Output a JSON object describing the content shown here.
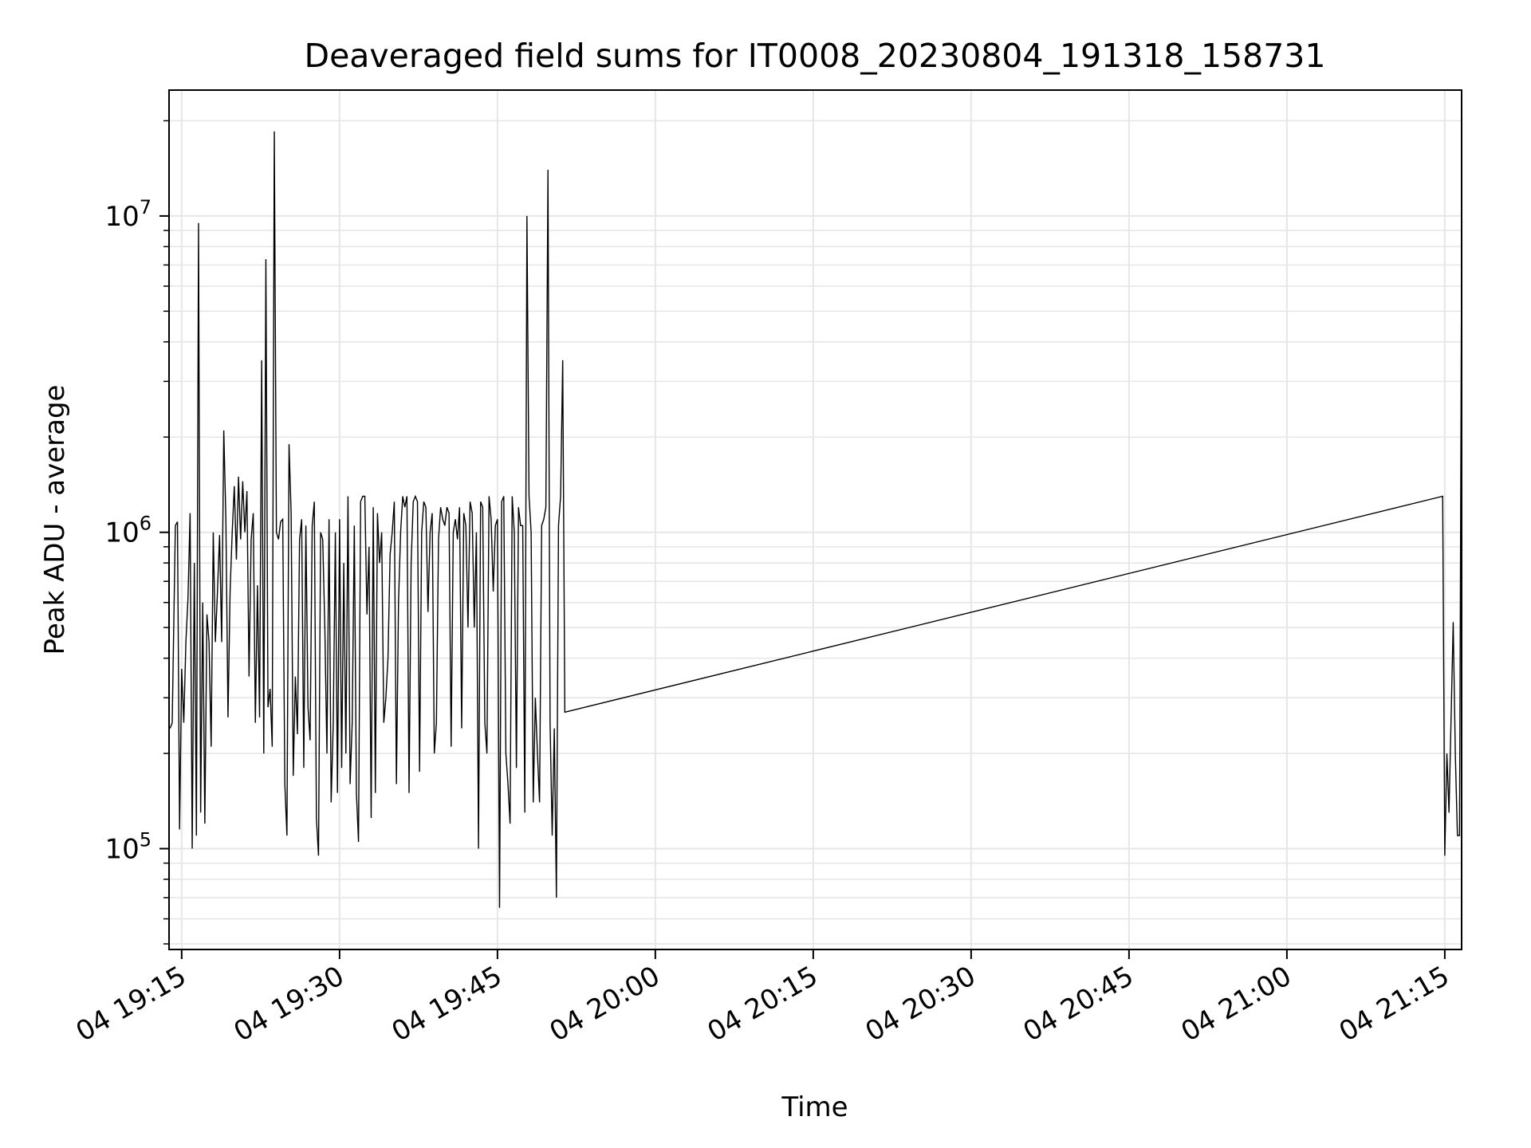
{
  "chart_data": {
    "type": "line",
    "title": "Deaveraged field sums for IT0008_20230804_191318_158731",
    "xlabel": "Time",
    "ylabel": "Peak ADU - average",
    "yscale": "log",
    "ylim": [
      48000,
      25000000
    ],
    "xlim": [
      "2023-08-04 19:13:48",
      "2023-08-04 21:16:36"
    ],
    "grid": true,
    "line_color": "#000000",
    "grid_color": "#e6e6e6",
    "x_ticks": [
      {
        "value": "2023-08-04 19:15:00",
        "label": "04 19:15"
      },
      {
        "value": "2023-08-04 19:30:00",
        "label": "04 19:30"
      },
      {
        "value": "2023-08-04 19:45:00",
        "label": "04 19:45"
      },
      {
        "value": "2023-08-04 20:00:00",
        "label": "04 20:00"
      },
      {
        "value": "2023-08-04 20:15:00",
        "label": "04 20:15"
      },
      {
        "value": "2023-08-04 20:30:00",
        "label": "04 20:30"
      },
      {
        "value": "2023-08-04 20:45:00",
        "label": "04 20:45"
      },
      {
        "value": "2023-08-04 21:00:00",
        "label": "04 21:00"
      },
      {
        "value": "2023-08-04 21:15:00",
        "label": "04 21:15"
      }
    ],
    "y_ticks": [
      {
        "value": 100000,
        "base": "10",
        "exp": "5"
      },
      {
        "value": 1000000,
        "base": "10",
        "exp": "6"
      },
      {
        "value": 10000000,
        "base": "10",
        "exp": "7"
      }
    ],
    "series": [
      {
        "x": [
          "2023-08-04 19:13:54",
          "2023-08-04 19:14:06",
          "2023-08-04 19:14:24",
          "2023-08-04 19:14:36",
          "2023-08-04 19:14:48",
          "2023-08-04 19:15:00",
          "2023-08-04 19:15:12",
          "2023-08-04 19:15:24",
          "2023-08-04 19:15:36",
          "2023-08-04 19:15:48",
          "2023-08-04 19:16:00",
          "2023-08-04 19:16:12",
          "2023-08-04 19:16:24",
          "2023-08-04 19:16:36",
          "2023-08-04 19:16:48",
          "2023-08-04 19:17:00",
          "2023-08-04 19:17:12",
          "2023-08-04 19:17:24",
          "2023-08-04 19:17:36",
          "2023-08-04 19:17:48",
          "2023-08-04 19:18:00",
          "2023-08-04 19:18:12",
          "2023-08-04 19:18:24",
          "2023-08-04 19:18:36",
          "2023-08-04 19:18:48",
          "2023-08-04 19:19:00",
          "2023-08-04 19:19:12",
          "2023-08-04 19:19:24",
          "2023-08-04 19:19:36",
          "2023-08-04 19:19:48",
          "2023-08-04 19:20:00",
          "2023-08-04 19:20:12",
          "2023-08-04 19:20:24",
          "2023-08-04 19:20:36",
          "2023-08-04 19:20:48",
          "2023-08-04 19:21:00",
          "2023-08-04 19:21:12",
          "2023-08-04 19:21:24",
          "2023-08-04 19:21:36",
          "2023-08-04 19:21:48",
          "2023-08-04 19:22:00",
          "2023-08-04 19:22:12",
          "2023-08-04 19:22:24",
          "2023-08-04 19:22:36",
          "2023-08-04 19:22:48",
          "2023-08-04 19:23:00",
          "2023-08-04 19:23:12",
          "2023-08-04 19:23:24",
          "2023-08-04 19:23:36",
          "2023-08-04 19:23:48",
          "2023-08-04 19:24:00",
          "2023-08-04 19:24:12",
          "2023-08-04 19:24:24",
          "2023-08-04 19:24:36",
          "2023-08-04 19:24:48",
          "2023-08-04 19:25:00",
          "2023-08-04 19:25:12",
          "2023-08-04 19:25:24",
          "2023-08-04 19:25:36",
          "2023-08-04 19:25:48",
          "2023-08-04 19:26:00",
          "2023-08-04 19:26:12",
          "2023-08-04 19:26:24",
          "2023-08-04 19:26:36",
          "2023-08-04 19:26:48",
          "2023-08-04 19:27:00",
          "2023-08-04 19:27:12",
          "2023-08-04 19:27:24",
          "2023-08-04 19:27:36",
          "2023-08-04 19:27:48",
          "2023-08-04 19:28:00",
          "2023-08-04 19:28:12",
          "2023-08-04 19:28:24",
          "2023-08-04 19:28:36",
          "2023-08-04 19:28:48",
          "2023-08-04 19:29:00",
          "2023-08-04 19:29:12",
          "2023-08-04 19:29:24",
          "2023-08-04 19:29:36",
          "2023-08-04 19:29:48",
          "2023-08-04 19:30:00",
          "2023-08-04 19:30:12",
          "2023-08-04 19:30:24",
          "2023-08-04 19:30:36",
          "2023-08-04 19:30:48",
          "2023-08-04 19:31:00",
          "2023-08-04 19:31:12",
          "2023-08-04 19:31:24",
          "2023-08-04 19:31:36",
          "2023-08-04 19:31:48",
          "2023-08-04 19:32:00",
          "2023-08-04 19:32:12",
          "2023-08-04 19:32:24",
          "2023-08-04 19:32:36",
          "2023-08-04 19:32:48",
          "2023-08-04 19:33:00",
          "2023-08-04 19:33:12",
          "2023-08-04 19:33:24",
          "2023-08-04 19:33:36",
          "2023-08-04 19:33:48",
          "2023-08-04 19:34:00",
          "2023-08-04 19:34:12",
          "2023-08-04 19:34:24",
          "2023-08-04 19:34:36",
          "2023-08-04 19:34:48",
          "2023-08-04 19:35:00",
          "2023-08-04 19:35:12",
          "2023-08-04 19:35:24",
          "2023-08-04 19:35:36",
          "2023-08-04 19:35:48",
          "2023-08-04 19:36:00",
          "2023-08-04 19:36:12",
          "2023-08-04 19:36:24",
          "2023-08-04 19:36:36",
          "2023-08-04 19:36:48",
          "2023-08-04 19:37:00",
          "2023-08-04 19:37:12",
          "2023-08-04 19:37:24",
          "2023-08-04 19:37:36",
          "2023-08-04 19:37:48",
          "2023-08-04 19:38:00",
          "2023-08-04 19:38:12",
          "2023-08-04 19:38:24",
          "2023-08-04 19:38:36",
          "2023-08-04 19:38:48",
          "2023-08-04 19:39:00",
          "2023-08-04 19:39:12",
          "2023-08-04 19:39:24",
          "2023-08-04 19:39:36",
          "2023-08-04 19:39:48",
          "2023-08-04 19:40:00",
          "2023-08-04 19:40:12",
          "2023-08-04 19:40:24",
          "2023-08-04 19:40:36",
          "2023-08-04 19:40:48",
          "2023-08-04 19:41:00",
          "2023-08-04 19:41:12",
          "2023-08-04 19:41:24",
          "2023-08-04 19:41:36",
          "2023-08-04 19:41:48",
          "2023-08-04 19:42:00",
          "2023-08-04 19:42:12",
          "2023-08-04 19:42:24",
          "2023-08-04 19:42:36",
          "2023-08-04 19:42:48",
          "2023-08-04 19:43:00",
          "2023-08-04 19:43:12",
          "2023-08-04 19:43:24",
          "2023-08-04 19:43:36",
          "2023-08-04 19:43:48",
          "2023-08-04 19:44:00",
          "2023-08-04 19:44:12",
          "2023-08-04 19:44:24",
          "2023-08-04 19:44:36",
          "2023-08-04 19:44:48",
          "2023-08-04 19:45:00",
          "2023-08-04 19:45:12",
          "2023-08-04 19:45:24",
          "2023-08-04 19:45:36",
          "2023-08-04 19:45:48",
          "2023-08-04 19:46:00",
          "2023-08-04 19:46:12",
          "2023-08-04 19:46:24",
          "2023-08-04 19:46:36",
          "2023-08-04 19:46:48",
          "2023-08-04 19:47:00",
          "2023-08-04 19:47:12",
          "2023-08-04 19:47:24",
          "2023-08-04 19:47:36",
          "2023-08-04 19:47:48",
          "2023-08-04 19:48:00",
          "2023-08-04 19:48:12",
          "2023-08-04 19:48:24",
          "2023-08-04 19:48:36",
          "2023-08-04 19:48:48",
          "2023-08-04 19:49:00",
          "2023-08-04 19:49:12",
          "2023-08-04 19:49:24",
          "2023-08-04 19:49:36",
          "2023-08-04 19:49:48",
          "2023-08-04 19:50:00",
          "2023-08-04 19:50:12",
          "2023-08-04 19:50:24",
          "2023-08-04 19:50:36",
          "2023-08-04 19:50:48",
          "2023-08-04 19:51:00",
          "2023-08-04 19:51:12",
          "2023-08-04 19:51:24",
          "2023-08-04 21:14:48",
          "2023-08-04 21:15:00",
          "2023-08-04 21:15:12",
          "2023-08-04 21:15:24",
          "2023-08-04 21:15:36",
          "2023-08-04 21:15:48",
          "2023-08-04 21:16:00",
          "2023-08-04 21:16:12",
          "2023-08-04 21:16:24",
          "2023-08-04 21:16:36"
        ],
        "y": [
          240000,
          250000,
          1050000,
          1080000,
          115000,
          370000,
          250000,
          450000,
          620000,
          1150000,
          100000,
          800000,
          110000,
          9500000,
          130000,
          600000,
          120000,
          550000,
          450000,
          210000,
          1000000,
          450000,
          650000,
          980000,
          450000,
          2100000,
          1100000,
          260000,
          650000,
          1000000,
          1400000,
          820000,
          1500000,
          950000,
          1450000,
          1000000,
          1350000,
          350000,
          950000,
          1150000,
          250000,
          680000,
          260000,
          3500000,
          200000,
          7300000,
          280000,
          320000,
          210000,
          18500000,
          1000000,
          950000,
          1080000,
          1100000,
          160000,
          110000,
          1900000,
          1150000,
          170000,
          350000,
          230000,
          950000,
          1100000,
          180000,
          1050000,
          280000,
          220000,
          1050000,
          1250000,
          125000,
          95000,
          1000000,
          950000,
          500000,
          200000,
          1100000,
          140000,
          250000,
          1000000,
          150000,
          1100000,
          180000,
          800000,
          200000,
          1300000,
          160000,
          250000,
          1050000,
          150000,
          105000,
          1250000,
          1300000,
          1300000,
          550000,
          900000,
          125000,
          1200000,
          150000,
          1150000,
          800000,
          1000000,
          250000,
          300000,
          400000,
          850000,
          1000000,
          1250000,
          160000,
          600000,
          1000000,
          1300000,
          1200000,
          1300000,
          150000,
          800000,
          1250000,
          1300000,
          1250000,
          175000,
          1000000,
          1250000,
          1200000,
          560000,
          1000000,
          1150000,
          200000,
          250000,
          950000,
          1200000,
          1100000,
          1050000,
          1200000,
          1150000,
          210000,
          1000000,
          1100000,
          950000,
          1200000,
          240000,
          1150000,
          1050000,
          500000,
          1250000,
          1150000,
          500000,
          1000000,
          100000,
          1250000,
          1200000,
          250000,
          200000,
          1300000,
          1100000,
          650000,
          1050000,
          1100000,
          65000,
          1250000,
          1300000,
          200000,
          160000,
          120000,
          1300000,
          1000000,
          180000,
          1200000,
          1050000,
          1050000,
          130000,
          10000000,
          1300000,
          1000000,
          140000,
          300000,
          200000,
          140000,
          1050000,
          1100000,
          1200000,
          14000000,
          250000,
          110000,
          240000,
          70000,
          1050000,
          1300000,
          3500000,
          270000,
          1300000,
          95000,
          200000,
          130000,
          260000,
          520000,
          200000,
          110000,
          110000,
          8000000
        ]
      }
    ]
  }
}
